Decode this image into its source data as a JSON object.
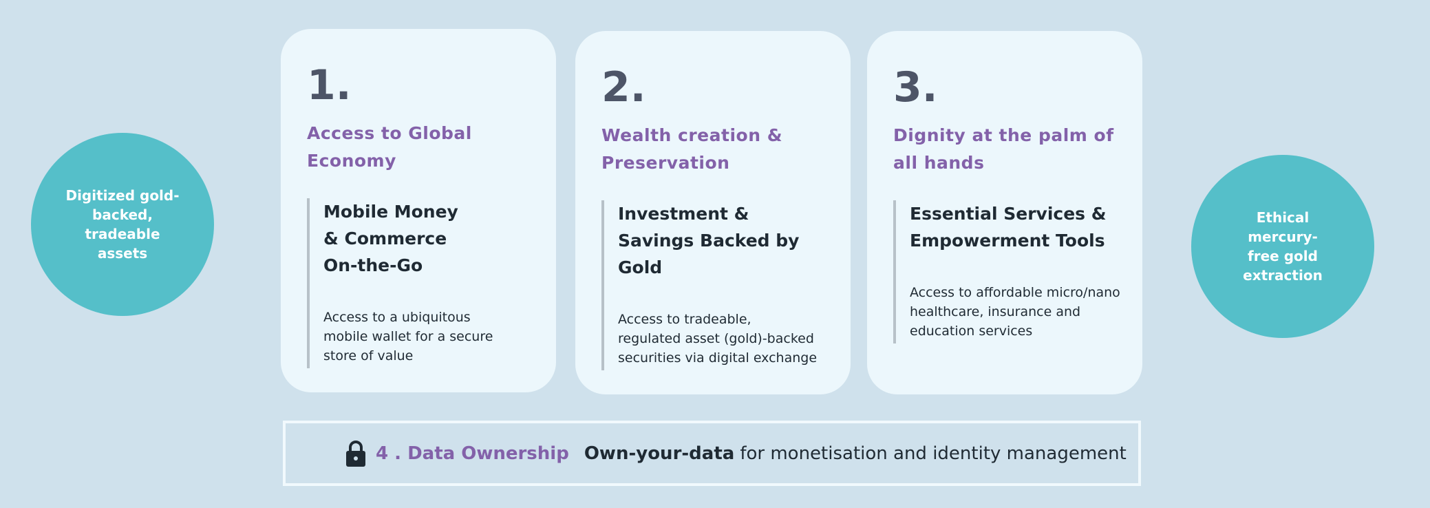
{
  "left_circle": {
    "text": "Digitized gold-backed, tradeable assets"
  },
  "right_circle": {
    "text": "Ethical mercury-free gold extraction"
  },
  "cards": [
    {
      "number": "1.",
      "heading": "Access to Global Economy",
      "subheading": "Mobile Money & Commerce On-the-Go",
      "description": "Access to a ubiquitous mobile wallet for a secure store of value"
    },
    {
      "number": "2.",
      "heading": "Wealth creation & Preservation",
      "subheading": "Investment & Savings Backed by Gold",
      "description": "Access to tradeable, regulated asset (gold)-backed securities via digital exchange"
    },
    {
      "number": "3.",
      "heading": "Dignity at the palm of all hands",
      "subheading": "Essential Services & Empowerment Tools",
      "description": "Access to affordable micro/nano healthcare, insurance and education services"
    }
  ],
  "bottom": {
    "icon": "lock-icon",
    "title": "4 . Data Ownership",
    "strong": "Own-your-data",
    "text": "for monetisation and identity management"
  },
  "colors": {
    "background": "#cfe1ec",
    "card": "#ecf7fc",
    "teal": "#55bfc9",
    "purple": "#8361a9"
  }
}
